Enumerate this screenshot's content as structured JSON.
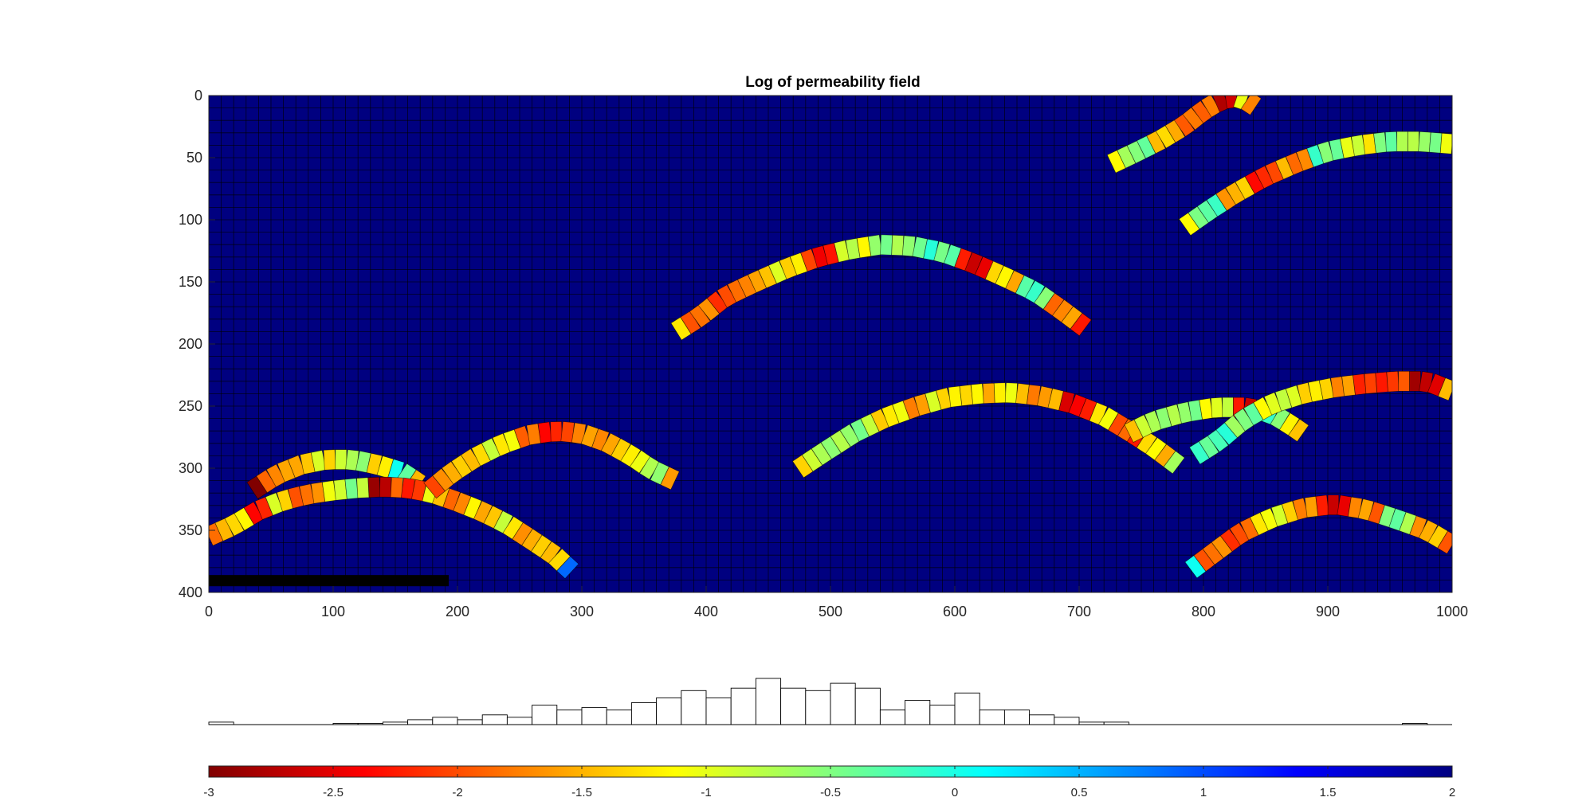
{
  "chart_data": [
    {
      "type": "heatmap",
      "title": "Log of permeability field",
      "xlabel": "",
      "ylabel": "",
      "xlim": [
        0,
        1000
      ],
      "ylim": [
        0,
        400
      ],
      "y_reversed": true,
      "x_ticks": [
        0,
        100,
        200,
        300,
        400,
        500,
        600,
        700,
        800,
        900,
        1000
      ],
      "y_ticks": [
        0,
        50,
        100,
        150,
        200,
        250,
        300,
        350,
        400
      ],
      "background_value": 2,
      "grid": true,
      "grid_cell_size": 10,
      "colormap": "jet (reversed)",
      "color_range": [
        -3,
        2
      ],
      "dark_bar": {
        "x": [
          0,
          193
        ],
        "y": [
          386,
          395
        ],
        "color": "#000000"
      },
      "arcs": [
        {
          "points": [
            [
              726,
              55
            ],
            [
              745,
              46
            ],
            [
              765,
              36
            ],
            [
              785,
              24
            ],
            [
              800,
              12
            ],
            [
              815,
              3
            ],
            [
              830,
              1
            ],
            [
              842,
              9
            ]
          ],
          "values": [
            -0.9,
            -0.6,
            -1.3,
            -1.7,
            -2.0,
            -2.6,
            -1.2,
            -1.5
          ]
        },
        {
          "points": [
            [
              785,
              106
            ],
            [
              805,
              92
            ],
            [
              825,
              79
            ],
            [
              850,
              65
            ],
            [
              875,
              54
            ],
            [
              900,
              45
            ],
            [
              925,
              40
            ],
            [
              950,
              37
            ],
            [
              975,
              37
            ],
            [
              1000,
              39
            ]
          ],
          "values": [
            -0.9,
            -0.4,
            -1.5,
            -2.1,
            -1.7,
            -0.3,
            -1.1,
            -0.5,
            -0.7,
            -0.9
          ]
        },
        {
          "points": [
            [
              376,
              190
            ],
            [
              395,
              178
            ],
            [
              415,
              162
            ],
            [
              440,
              150
            ],
            [
              465,
              139
            ],
            [
              490,
              130
            ],
            [
              515,
              124
            ],
            [
              540,
              120
            ],
            [
              565,
              121
            ],
            [
              590,
              126
            ],
            [
              615,
              135
            ],
            [
              640,
              146
            ],
            [
              665,
              158
            ],
            [
              685,
              172
            ],
            [
              705,
              187
            ]
          ],
          "values": [
            -1.0,
            -1.9,
            -2.0,
            -1.5,
            -1.2,
            -2.2,
            -1.0,
            -0.6,
            -0.5,
            -0.3,
            -2.4,
            -1.4,
            -0.3,
            -1.8,
            -2.1
          ]
        },
        {
          "points": [
            [
              474,
              301
            ],
            [
              495,
              287
            ],
            [
              520,
              271
            ],
            [
              545,
              259
            ],
            [
              570,
              250
            ],
            [
              595,
              243
            ],
            [
              620,
              240
            ],
            [
              645,
              239
            ],
            [
              670,
              242
            ],
            [
              695,
              248
            ],
            [
              720,
              258
            ],
            [
              740,
              270
            ],
            [
              760,
              283
            ],
            [
              780,
              298
            ]
          ],
          "values": [
            -1.1,
            -0.8,
            -0.6,
            -1.3,
            -1.6,
            -1.1,
            -1.4,
            -1.2,
            -1.7,
            -2.4,
            -1.0,
            -2.1,
            -1.3,
            -0.6
          ]
        },
        {
          "points": [
            [
              740,
              272
            ],
            [
              760,
              262
            ],
            [
              785,
              255
            ],
            [
              810,
              251
            ],
            [
              835,
              251
            ],
            [
              855,
              256
            ],
            [
              870,
              265
            ],
            [
              880,
              272
            ]
          ],
          "values": [
            -1.2,
            -0.8,
            -0.6,
            -0.9,
            -2.5,
            -0.3,
            -1.1,
            -1.5
          ]
        },
        {
          "points": [
            [
              793,
              290
            ],
            [
              812,
              278
            ],
            [
              832,
              261
            ],
            [
              855,
              248
            ],
            [
              880,
              240
            ],
            [
              905,
              235
            ],
            [
              930,
              232
            ],
            [
              955,
              230
            ],
            [
              980,
              230
            ],
            [
              1000,
              238
            ]
          ],
          "values": [
            0.1,
            -0.3,
            -0.5,
            -0.9,
            -1.2,
            -1.5,
            -2.3,
            -2.1,
            -2.6,
            -1.7
          ]
        },
        {
          "points": [
            [
              790,
              382
            ],
            [
              810,
              367
            ],
            [
              830,
              352
            ],
            [
              855,
              340
            ],
            [
              880,
              332
            ],
            [
              905,
              329
            ],
            [
              930,
              333
            ],
            [
              955,
              341
            ],
            [
              980,
              350
            ],
            [
              1000,
              362
            ]
          ],
          "values": [
            0.3,
            -1.9,
            -2.0,
            -1.0,
            -1.6,
            -2.4,
            -1.8,
            -0.5,
            -1.6,
            -1.8
          ]
        },
        {
          "points": [
            [
              35,
              318
            ],
            [
              55,
              305
            ],
            [
              75,
              297
            ],
            [
              95,
              293
            ],
            [
              115,
              293
            ],
            [
              135,
              297
            ],
            [
              155,
              303
            ],
            [
              170,
              313
            ]
          ],
          "values": [
            -2.8,
            -1.8,
            -1.4,
            -1.1,
            -0.8,
            -1.2,
            -0.1,
            -1.4
          ]
        },
        {
          "points": [
            [
              0,
              355
            ],
            [
              20,
              346
            ],
            [
              40,
              334
            ],
            [
              60,
              326
            ],
            [
              80,
              321
            ],
            [
              100,
              318
            ],
            [
              120,
              316
            ],
            [
              140,
              315
            ],
            [
              160,
              316
            ],
            [
              180,
              320
            ],
            [
              200,
              327
            ],
            [
              220,
              335
            ],
            [
              240,
              345
            ],
            [
              260,
              358
            ],
            [
              278,
              370
            ],
            [
              292,
              383
            ]
          ],
          "values": [
            -1.6,
            -1.4,
            -2.2,
            -1.1,
            -1.9,
            -0.9,
            -0.6,
            -2.8,
            -2.1,
            -1.2,
            -1.8,
            -1.4,
            -1.0,
            -1.6,
            -1.3,
            0.7
          ]
        },
        {
          "points": [
            [
              178,
              318
            ],
            [
              195,
              304
            ],
            [
              215,
              291
            ],
            [
              235,
              281
            ],
            [
              258,
              273
            ],
            [
              280,
              270
            ],
            [
              300,
              272
            ],
            [
              320,
              279
            ],
            [
              340,
              290
            ],
            [
              356,
              301
            ],
            [
              375,
              310
            ]
          ],
          "values": [
            -1.8,
            -1.6,
            -1.3,
            -1.0,
            -2.0,
            -2.2,
            -1.5,
            -1.8,
            -1.2,
            -0.5,
            -1.7
          ]
        }
      ]
    },
    {
      "type": "bar",
      "title": "",
      "xlim": [
        -3,
        2
      ],
      "bin_edges_start": -3,
      "bin_width": 0.1,
      "values": [
        1,
        0,
        0,
        0,
        0,
        0.5,
        0.5,
        1,
        2,
        3,
        2,
        4,
        3,
        8,
        6,
        7,
        6,
        9,
        11,
        14,
        11,
        15,
        19,
        15,
        14,
        17,
        15,
        6,
        10,
        8,
        13,
        6,
        6,
        4,
        3,
        1,
        1,
        0,
        0,
        0,
        0,
        0,
        0,
        0,
        0,
        0,
        0,
        0,
        0.5,
        0,
        0,
        0,
        0,
        0,
        0,
        0,
        0,
        0,
        0,
        0
      ],
      "frame_color": "#000000"
    },
    {
      "type": "colorbar",
      "range": [
        -3,
        2
      ],
      "ticks": [
        -3,
        -2.5,
        -2,
        -1.5,
        -1,
        -0.5,
        0,
        0.5,
        1,
        1.5,
        2
      ],
      "tick_labels": [
        "-3",
        "-2.5",
        "-2",
        "-1.5",
        "-1",
        "-0.5",
        "0",
        "0.5",
        "1",
        "1.5",
        "2"
      ],
      "colormap": "jet (reversed)"
    }
  ]
}
